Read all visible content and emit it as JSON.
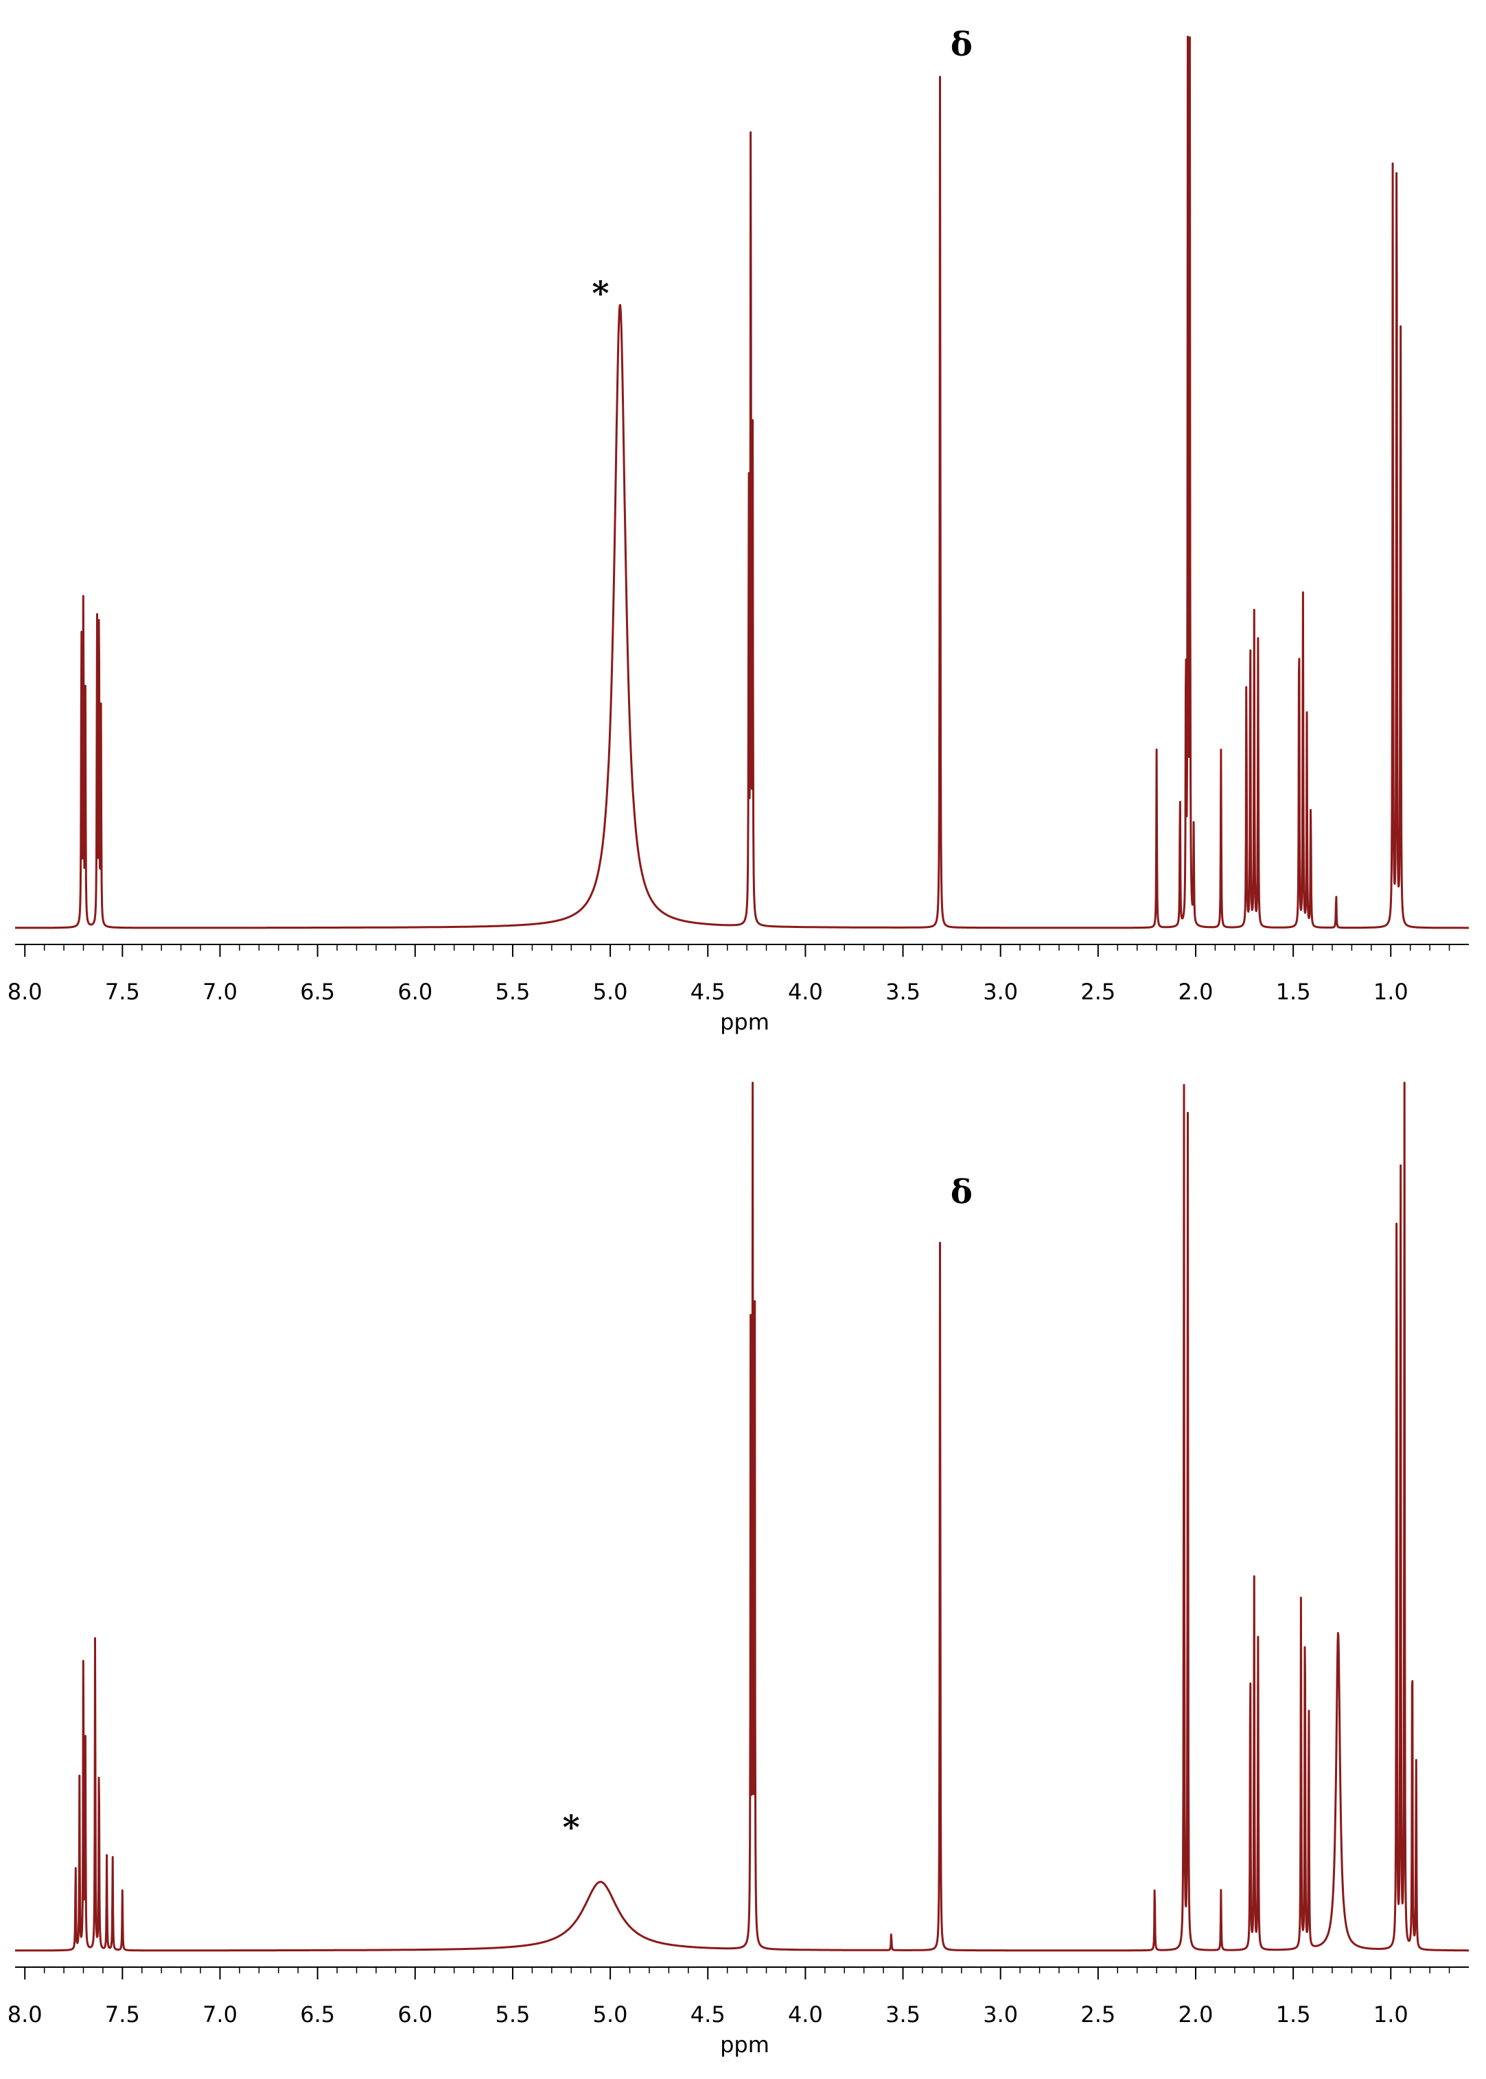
{
  "chart_data": [
    {
      "type": "line",
      "xlabel": "ppm",
      "xlim": [
        8.05,
        0.6
      ],
      "x_ticks": [
        "8.0",
        "7.5",
        "7.0",
        "6.5",
        "6.0",
        "5.5",
        "5.0",
        "4.5",
        "4.0",
        "3.5",
        "3.0",
        "2.5",
        "2.0",
        "1.5",
        "1.0"
      ],
      "ylim": [
        0,
        100
      ],
      "line_color": "#8b1a1a",
      "annotations": [
        {
          "text": "*",
          "x": 5.05,
          "y": 70
        },
        {
          "text": "δ",
          "x": 3.2,
          "y": 98
        }
      ],
      "peaks": [
        {
          "x": 7.71,
          "h": 36
        },
        {
          "x": 7.7,
          "h": 40
        },
        {
          "x": 7.69,
          "h": 26
        },
        {
          "x": 7.63,
          "h": 36
        },
        {
          "x": 7.62,
          "h": 40
        },
        {
          "x": 7.61,
          "h": 24
        },
        {
          "x": 4.95,
          "h": 70,
          "w": 0.035
        },
        {
          "x": 4.29,
          "h": 52
        },
        {
          "x": 4.28,
          "h": 101
        },
        {
          "x": 4.27,
          "h": 54
        },
        {
          "x": 3.31,
          "h": 101
        },
        {
          "x": 2.2,
          "h": 20
        },
        {
          "x": 2.08,
          "h": 16
        },
        {
          "x": 2.05,
          "h": 33
        },
        {
          "x": 2.04,
          "h": 101
        },
        {
          "x": 2.03,
          "h": 101
        },
        {
          "x": 2.01,
          "h": 11
        },
        {
          "x": 1.87,
          "h": 20
        },
        {
          "x": 1.74,
          "h": 30
        },
        {
          "x": 1.72,
          "h": 37
        },
        {
          "x": 1.7,
          "h": 36
        },
        {
          "x": 1.68,
          "h": 33
        },
        {
          "x": 1.47,
          "h": 38
        },
        {
          "x": 1.45,
          "h": 39
        },
        {
          "x": 1.43,
          "h": 24
        },
        {
          "x": 1.41,
          "h": 15
        },
        {
          "x": 1.28,
          "h": 4
        },
        {
          "x": 0.99,
          "h": 87
        },
        {
          "x": 0.97,
          "h": 101
        },
        {
          "x": 0.95,
          "h": 75
        }
      ]
    },
    {
      "type": "line",
      "xlabel": "ppm",
      "xlim": [
        8.05,
        0.6
      ],
      "x_ticks": [
        "8.0",
        "7.5",
        "7.0",
        "6.5",
        "6.0",
        "5.5",
        "5.0",
        "4.5",
        "4.0",
        "3.5",
        "3.0",
        "2.5",
        "2.0",
        "1.5",
        "1.0"
      ],
      "ylim": [
        0,
        100
      ],
      "line_color": "#8b1a1a",
      "annotations": [
        {
          "text": "*",
          "x": 5.2,
          "y": 13
        },
        {
          "text": "δ",
          "x": 3.2,
          "y": 87
        }
      ],
      "peaks": [
        {
          "x": 7.74,
          "h": 10
        },
        {
          "x": 7.72,
          "h": 20
        },
        {
          "x": 7.7,
          "h": 37
        },
        {
          "x": 7.69,
          "h": 24
        },
        {
          "x": 7.64,
          "h": 37
        },
        {
          "x": 7.62,
          "h": 24
        },
        {
          "x": 7.58,
          "h": 11
        },
        {
          "x": 7.55,
          "h": 11
        },
        {
          "x": 7.5,
          "h": 7
        },
        {
          "x": 5.05,
          "h": 8,
          "w": 0.11
        },
        {
          "x": 4.28,
          "h": 83
        },
        {
          "x": 4.27,
          "h": 101
        },
        {
          "x": 4.26,
          "h": 84
        },
        {
          "x": 3.56,
          "h": 2
        },
        {
          "x": 3.31,
          "h": 87
        },
        {
          "x": 2.21,
          "h": 8
        },
        {
          "x": 2.06,
          "h": 101
        },
        {
          "x": 2.04,
          "h": 101
        },
        {
          "x": 1.87,
          "h": 7
        },
        {
          "x": 1.72,
          "h": 37
        },
        {
          "x": 1.7,
          "h": 44
        },
        {
          "x": 1.68,
          "h": 37
        },
        {
          "x": 1.46,
          "h": 42
        },
        {
          "x": 1.44,
          "h": 43
        },
        {
          "x": 1.42,
          "h": 30
        },
        {
          "x": 1.27,
          "h": 37,
          "w": 0.012
        },
        {
          "x": 0.97,
          "h": 101
        },
        {
          "x": 0.95,
          "h": 101
        },
        {
          "x": 0.93,
          "h": 101
        },
        {
          "x": 0.89,
          "h": 40
        },
        {
          "x": 0.87,
          "h": 23
        }
      ]
    }
  ]
}
